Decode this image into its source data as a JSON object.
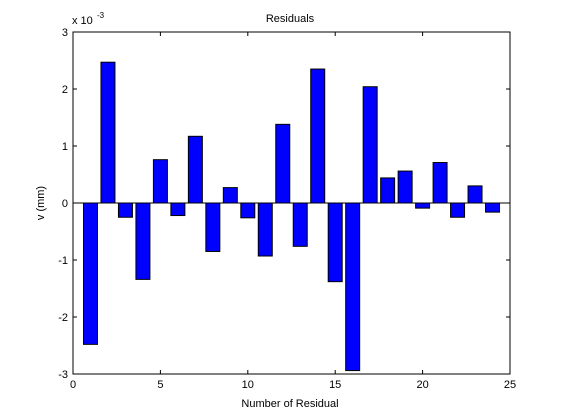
{
  "chart_data": {
    "type": "bar",
    "title": "Residuals",
    "xlabel": "Number of Residual",
    "ylabel": "v  (mm)",
    "y_scale_label_base": "x 10",
    "y_scale_label_exp": "-3",
    "xlim": [
      0,
      25
    ],
    "ylim": [
      -3,
      3
    ],
    "xticks": [
      "0",
      "5",
      "10",
      "15",
      "20",
      "25"
    ],
    "yticks": [
      "3",
      "2",
      "1",
      "0",
      "-1",
      "-2",
      "-3"
    ],
    "grid": false,
    "legend": "none",
    "bar_color": "#0000ff",
    "x": [
      1,
      2,
      3,
      4,
      5,
      6,
      7,
      8,
      9,
      10,
      11,
      12,
      13,
      14,
      15,
      16,
      17,
      18,
      19,
      20,
      21,
      22,
      23,
      24
    ],
    "values": [
      -2.48,
      2.47,
      -0.25,
      -1.34,
      0.76,
      -0.22,
      1.17,
      -0.85,
      0.27,
      -0.26,
      -0.93,
      1.38,
      -0.76,
      2.35,
      -1.38,
      -2.94,
      2.04,
      0.44,
      0.56,
      -0.09,
      0.71,
      -0.25,
      0.3,
      -0.16
    ]
  }
}
